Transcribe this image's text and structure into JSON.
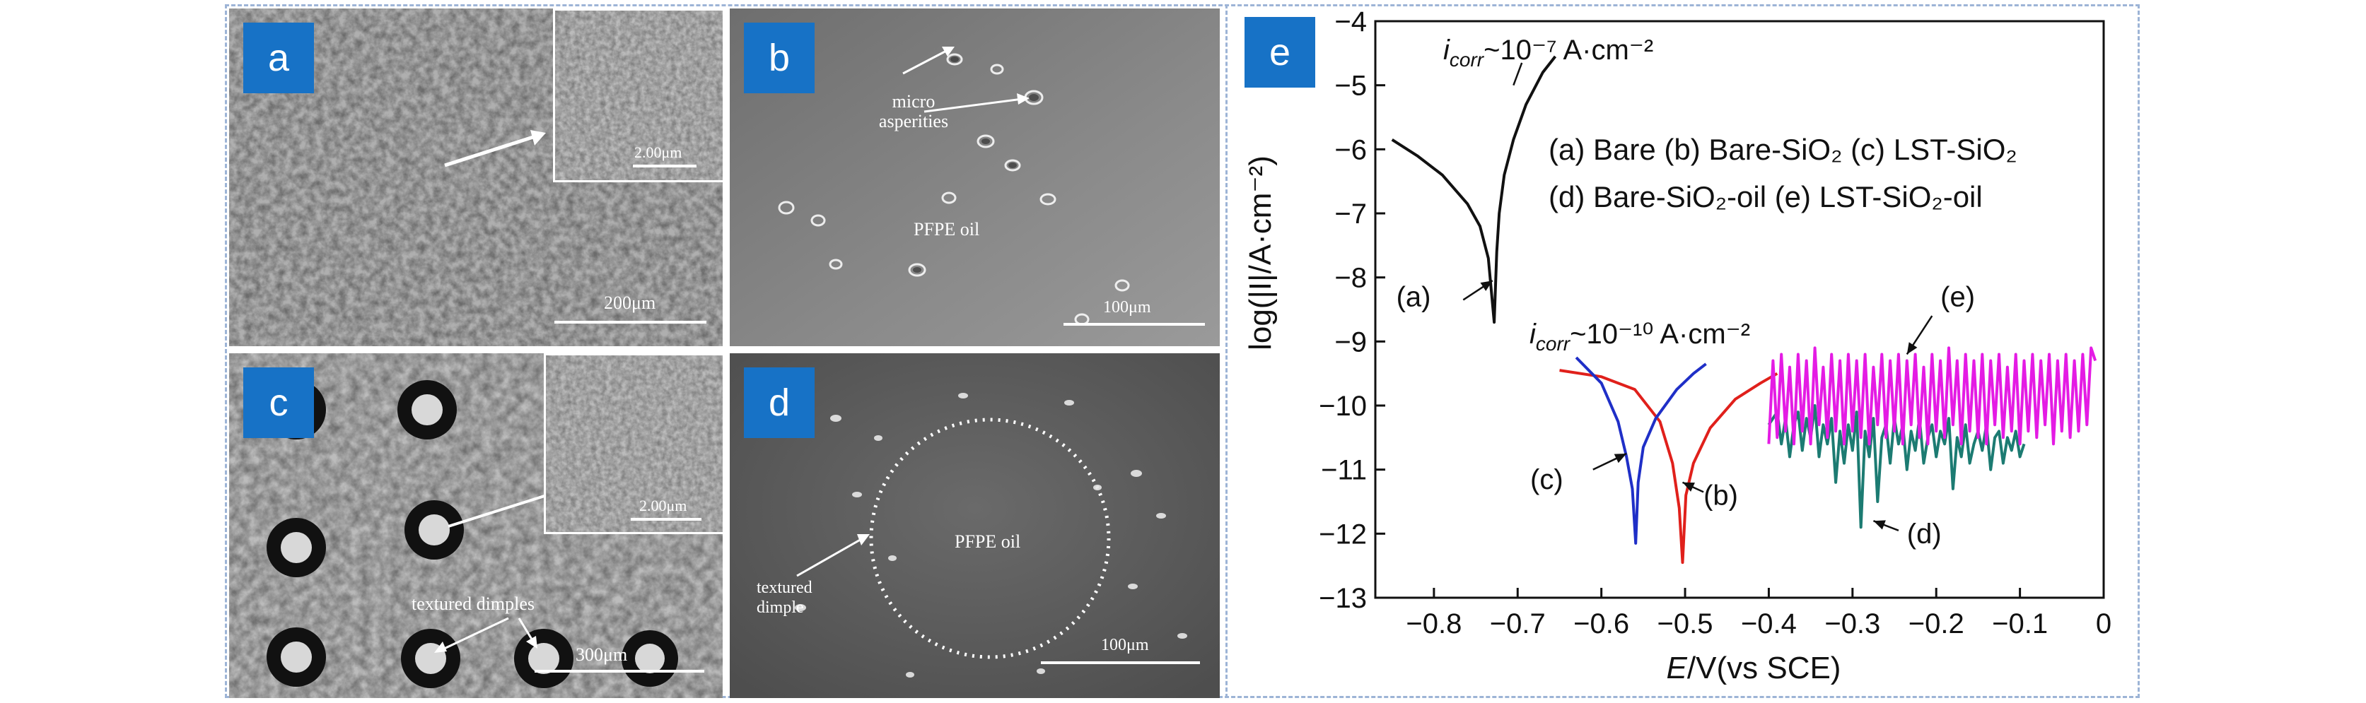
{
  "panels": {
    "a": {
      "label": "a",
      "inset_scale": "2.00μm",
      "scale": "200μm"
    },
    "b": {
      "label": "b",
      "annotation": "micro asperities",
      "center_text": "PFPE oil",
      "scale": "100μm"
    },
    "c": {
      "label": "c",
      "inset_scale": "2.00μm",
      "annotation": "textured dimples",
      "scale": "300μm"
    },
    "d": {
      "label": "d",
      "annotation": "textured dimple",
      "center_text": "PFPE oil",
      "scale": "100μm"
    },
    "e": {
      "label": "e"
    }
  },
  "chart_data": {
    "type": "line",
    "xlabel_italic": "E",
    "xlabel_rest": "/V(vs SCE)",
    "ylabel": "log(|I|/A·cm⁻²)",
    "xlim": [
      -0.87,
      0.0
    ],
    "ylim": [
      -13,
      -4
    ],
    "xticks": [
      "−0.8",
      "−0.7",
      "−0.6",
      "−0.5",
      "−0.4",
      "−0.3",
      "−0.2",
      "−0.1",
      "0"
    ],
    "xtick_values": [
      -0.8,
      -0.7,
      -0.6,
      -0.5,
      -0.4,
      -0.3,
      -0.2,
      -0.1,
      0.0
    ],
    "yticks": [
      "−4",
      "−5",
      "−6",
      "−7",
      "−8",
      "−9",
      "−10",
      "−11",
      "−12",
      "−13"
    ],
    "ytick_values": [
      -4,
      -5,
      -6,
      -7,
      -8,
      -9,
      -10,
      -11,
      -12,
      -13
    ],
    "legend_lines": [
      "(a) Bare (b) Bare-SiO₂ (c) LST-SiO₂",
      "(d) Bare-SiO₂-oil  (e) LST-SiO₂-oil"
    ],
    "annotation_top": "i_corr~10⁻⁷ A·cm⁻²",
    "annotation_top_sub": "corr",
    "annotation_top_tail": "~10⁻⁷ A·cm⁻²",
    "annotation_mid_tail": "~10⁻¹⁰ A·cm⁻²",
    "curve_labels": [
      "(a)",
      "(b)",
      "(c)",
      "(d)",
      "(e)"
    ],
    "series": [
      {
        "name": "(a)",
        "color": "#111111",
        "x": [
          -0.85,
          -0.82,
          -0.79,
          -0.76,
          -0.745,
          -0.735,
          -0.728,
          -0.725,
          -0.722,
          -0.716,
          -0.705,
          -0.69,
          -0.67,
          -0.655
        ],
        "y": [
          -5.85,
          -6.1,
          -6.4,
          -6.85,
          -7.2,
          -7.7,
          -8.7,
          -7.6,
          -7.0,
          -6.4,
          -5.85,
          -5.3,
          -4.8,
          -4.55
        ]
      },
      {
        "name": "(b)",
        "color": "#e0201b",
        "x": [
          -0.65,
          -0.6,
          -0.56,
          -0.53,
          -0.515,
          -0.507,
          -0.503,
          -0.499,
          -0.49,
          -0.47,
          -0.44,
          -0.41,
          -0.39
        ],
        "y": [
          -9.45,
          -9.55,
          -9.75,
          -10.25,
          -10.9,
          -11.6,
          -12.45,
          -11.4,
          -10.9,
          -10.35,
          -9.9,
          -9.65,
          -9.5
        ]
      },
      {
        "name": "(c)",
        "color": "#1f2fc7",
        "x": [
          -0.63,
          -0.6,
          -0.58,
          -0.57,
          -0.563,
          -0.559,
          -0.556,
          -0.55,
          -0.535,
          -0.51,
          -0.49,
          -0.475
        ],
        "y": [
          -9.25,
          -9.65,
          -10.25,
          -10.8,
          -11.3,
          -12.15,
          -11.2,
          -10.65,
          -10.2,
          -9.75,
          -9.5,
          -9.35
        ],
        "curve_style": "smooth"
      },
      {
        "name": "(d)",
        "color": "#1c7b72",
        "x": [
          -0.4,
          -0.39,
          -0.385,
          -0.38,
          -0.375,
          -0.37,
          -0.365,
          -0.36,
          -0.355,
          -0.35,
          -0.345,
          -0.34,
          -0.335,
          -0.33,
          -0.325,
          -0.32,
          -0.315,
          -0.31,
          -0.305,
          -0.3,
          -0.295,
          -0.29,
          -0.285,
          -0.28,
          -0.275,
          -0.27,
          -0.265,
          -0.26,
          -0.255,
          -0.25,
          -0.245,
          -0.24,
          -0.235,
          -0.23,
          -0.225,
          -0.22,
          -0.215,
          -0.21,
          -0.205,
          -0.2,
          -0.195,
          -0.19,
          -0.185,
          -0.18,
          -0.175,
          -0.17,
          -0.165,
          -0.16,
          -0.155,
          -0.15,
          -0.145,
          -0.14,
          -0.135,
          -0.13,
          -0.125,
          -0.12,
          -0.115,
          -0.11,
          -0.105,
          -0.1,
          -0.095
        ],
        "y": [
          -10.3,
          -10.1,
          -10.6,
          -10.2,
          -10.8,
          -10.3,
          -10.1,
          -10.7,
          -10.2,
          -10.5,
          -10.0,
          -10.8,
          -10.3,
          -10.6,
          -10.2,
          -11.2,
          -10.4,
          -10.9,
          -10.3,
          -10.7,
          -10.1,
          -11.9,
          -10.4,
          -10.8,
          -10.2,
          -11.5,
          -10.5,
          -10.3,
          -10.9,
          -10.2,
          -10.6,
          -10.3,
          -11.0,
          -10.4,
          -10.7,
          -10.2,
          -10.9,
          -10.5,
          -10.3,
          -10.8,
          -10.4,
          -10.6,
          -10.2,
          -11.3,
          -10.5,
          -10.8,
          -10.3,
          -10.9,
          -10.6,
          -10.4,
          -10.7,
          -10.3,
          -11.0,
          -10.5,
          -10.4,
          -10.9,
          -10.5,
          -10.7,
          -10.4,
          -10.8,
          -10.6
        ]
      },
      {
        "name": "(e)",
        "color": "#e41be4",
        "x": [
          -0.4,
          -0.395,
          -0.39,
          -0.385,
          -0.38,
          -0.375,
          -0.37,
          -0.365,
          -0.36,
          -0.355,
          -0.35,
          -0.345,
          -0.34,
          -0.335,
          -0.33,
          -0.325,
          -0.32,
          -0.315,
          -0.31,
          -0.305,
          -0.3,
          -0.295,
          -0.29,
          -0.285,
          -0.28,
          -0.275,
          -0.27,
          -0.265,
          -0.26,
          -0.255,
          -0.25,
          -0.245,
          -0.24,
          -0.235,
          -0.23,
          -0.225,
          -0.22,
          -0.215,
          -0.21,
          -0.205,
          -0.2,
          -0.195,
          -0.19,
          -0.185,
          -0.18,
          -0.175,
          -0.17,
          -0.165,
          -0.16,
          -0.155,
          -0.15,
          -0.145,
          -0.14,
          -0.135,
          -0.13,
          -0.125,
          -0.12,
          -0.115,
          -0.11,
          -0.105,
          -0.1,
          -0.095,
          -0.09,
          -0.085,
          -0.08,
          -0.075,
          -0.07,
          -0.065,
          -0.06,
          -0.055,
          -0.05,
          -0.045,
          -0.04,
          -0.035,
          -0.03,
          -0.025,
          -0.02,
          -0.015,
          -0.01
        ],
        "y": [
          -10.6,
          -9.3,
          -10.5,
          -9.2,
          -10.4,
          -9.4,
          -10.6,
          -9.2,
          -10.4,
          -9.3,
          -10.6,
          -9.1,
          -10.3,
          -9.4,
          -10.5,
          -9.2,
          -10.4,
          -9.3,
          -10.6,
          -9.2,
          -10.4,
          -9.3,
          -10.5,
          -9.2,
          -10.6,
          -9.4,
          -10.3,
          -9.2,
          -10.5,
          -9.3,
          -10.4,
          -9.2,
          -10.6,
          -9.3,
          -10.3,
          -9.2,
          -10.5,
          -9.4,
          -10.6,
          -9.2,
          -10.4,
          -9.3,
          -10.5,
          -9.1,
          -10.3,
          -9.3,
          -10.6,
          -9.2,
          -10.4,
          -9.3,
          -10.5,
          -9.2,
          -10.6,
          -9.3,
          -10.3,
          -9.2,
          -10.5,
          -9.4,
          -10.4,
          -9.2,
          -10.6,
          -9.3,
          -10.4,
          -9.2,
          -10.5,
          -9.3,
          -10.3,
          -9.2,
          -10.6,
          -9.3,
          -10.4,
          -9.2,
          -10.5,
          -9.3,
          -10.4,
          -9.2,
          -10.3,
          -9.1,
          -9.3
        ]
      }
    ]
  }
}
